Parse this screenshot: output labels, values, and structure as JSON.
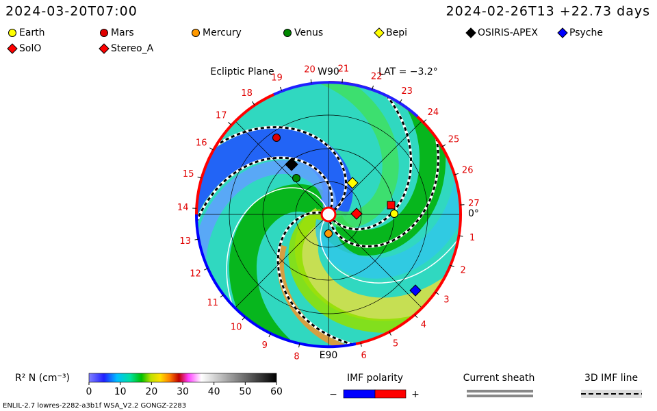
{
  "header": {
    "left": "2024-03-20T07:00",
    "right": "2024-02-26T13 +22.73 days"
  },
  "legend": [
    {
      "label": "Earth",
      "color": "#ffff00",
      "shape": "circle"
    },
    {
      "label": "Mars",
      "color": "#e00000",
      "shape": "circle"
    },
    {
      "label": "Mercury",
      "color": "#ff9900",
      "shape": "circle"
    },
    {
      "label": "Venus",
      "color": "#008800",
      "shape": "circle"
    },
    {
      "label": "Bepi",
      "color": "#ffff00",
      "shape": "diamond"
    },
    {
      "label": "OSIRIS-APEX",
      "color": "#000000",
      "shape": "diamond"
    },
    {
      "label": "Psyche",
      "color": "#0000ff",
      "shape": "diamond"
    },
    {
      "label": "SolO",
      "color": "#ff0000",
      "shape": "diamond"
    },
    {
      "label": "Stereo_A",
      "color": "#ff0000",
      "shape": "diamond"
    }
  ],
  "plot": {
    "title": "Ecliptic Plane",
    "top": "W90",
    "bottom": "E90",
    "lat": "LAT = −3.2°",
    "right": "0°",
    "longitudes": [
      "1",
      "2",
      "3",
      "4",
      "5",
      "6",
      "8",
      "9",
      "10",
      "11",
      "12",
      "13",
      "14",
      "15",
      "16",
      "17",
      "18",
      "19",
      "20",
      "21",
      "22",
      "23",
      "24",
      "25",
      "26",
      "27"
    ]
  },
  "colorbar": {
    "label": "R² N (cm⁻³)",
    "ticks": [
      0,
      10,
      20,
      30,
      40,
      50,
      60
    ]
  },
  "imf": {
    "title": "IMF polarity",
    "minus": "−",
    "plus": "+"
  },
  "sheath": {
    "title": "Current sheath"
  },
  "imf3d": {
    "title": "3D IMF line"
  },
  "footer": "ENLIL-2.7 lowres-2282-a3b1f WSA_V2.2 GONGZ-2283"
}
